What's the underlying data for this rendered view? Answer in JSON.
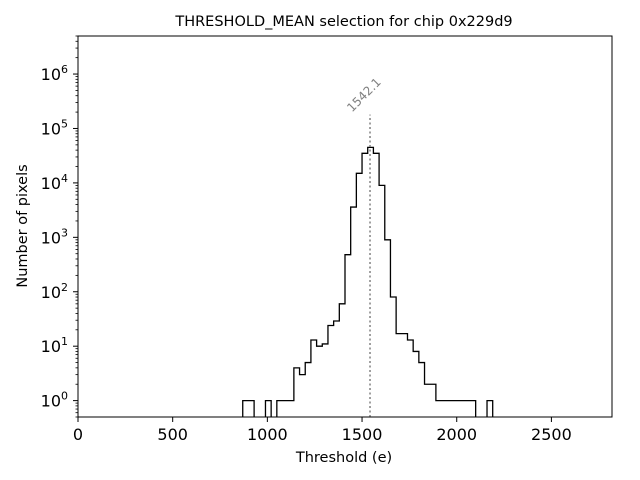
{
  "chart_data": {
    "type": "histogram-step",
    "title": "THRESHOLD_MEAN selection for chip 0x229d9",
    "xlabel": "Threshold (e)",
    "ylabel": "Number of pixels",
    "xlim": [
      0,
      2820
    ],
    "ylim": [
      0.5,
      5000000
    ],
    "yscale": "log",
    "grid": false,
    "x_ticks": [
      {
        "value": 0,
        "label": "0"
      },
      {
        "value": 500,
        "label": "500"
      },
      {
        "value": 1000,
        "label": "1000"
      },
      {
        "value": 1500,
        "label": "1500"
      },
      {
        "value": 2000,
        "label": "2000"
      },
      {
        "value": 2500,
        "label": "2500"
      }
    ],
    "y_ticks": [
      {
        "value": 1,
        "base": "10",
        "exp": "0"
      },
      {
        "value": 10,
        "base": "10",
        "exp": "1"
      },
      {
        "value": 100,
        "base": "10",
        "exp": "2"
      },
      {
        "value": 1000,
        "base": "10",
        "exp": "3"
      },
      {
        "value": 10000,
        "base": "10",
        "exp": "4"
      },
      {
        "value": 100000,
        "base": "10",
        "exp": "5"
      },
      {
        "value": 1000000,
        "base": "10",
        "exp": "6"
      }
    ],
    "line_color": "#000000",
    "bin_edges": [
      870,
      900,
      930,
      960,
      990,
      1020,
      1050,
      1080,
      1110,
      1140,
      1170,
      1200,
      1230,
      1260,
      1290,
      1320,
      1350,
      1380,
      1410,
      1440,
      1470,
      1500,
      1530,
      1560,
      1590,
      1620,
      1650,
      1680,
      1710,
      1740,
      1770,
      1800,
      1830,
      1860,
      1890,
      1920,
      1950,
      1980,
      2010,
      2040,
      2070,
      2100,
      2130,
      2160,
      2190
    ],
    "counts": [
      1,
      1,
      0,
      0,
      1,
      0,
      1,
      1,
      1,
      4,
      3,
      5,
      13,
      10,
      11,
      24,
      29,
      60,
      480,
      3600,
      15000,
      35000,
      45000,
      35000,
      9000,
      900,
      80,
      17,
      17,
      13,
      8,
      5,
      2,
      2,
      1,
      1,
      1,
      1,
      1,
      1,
      1,
      0,
      0,
      1
    ],
    "threshold_line": {
      "x": 1542.1,
      "label": "1542.1",
      "color": "#808080",
      "y_top": 180000
    }
  }
}
